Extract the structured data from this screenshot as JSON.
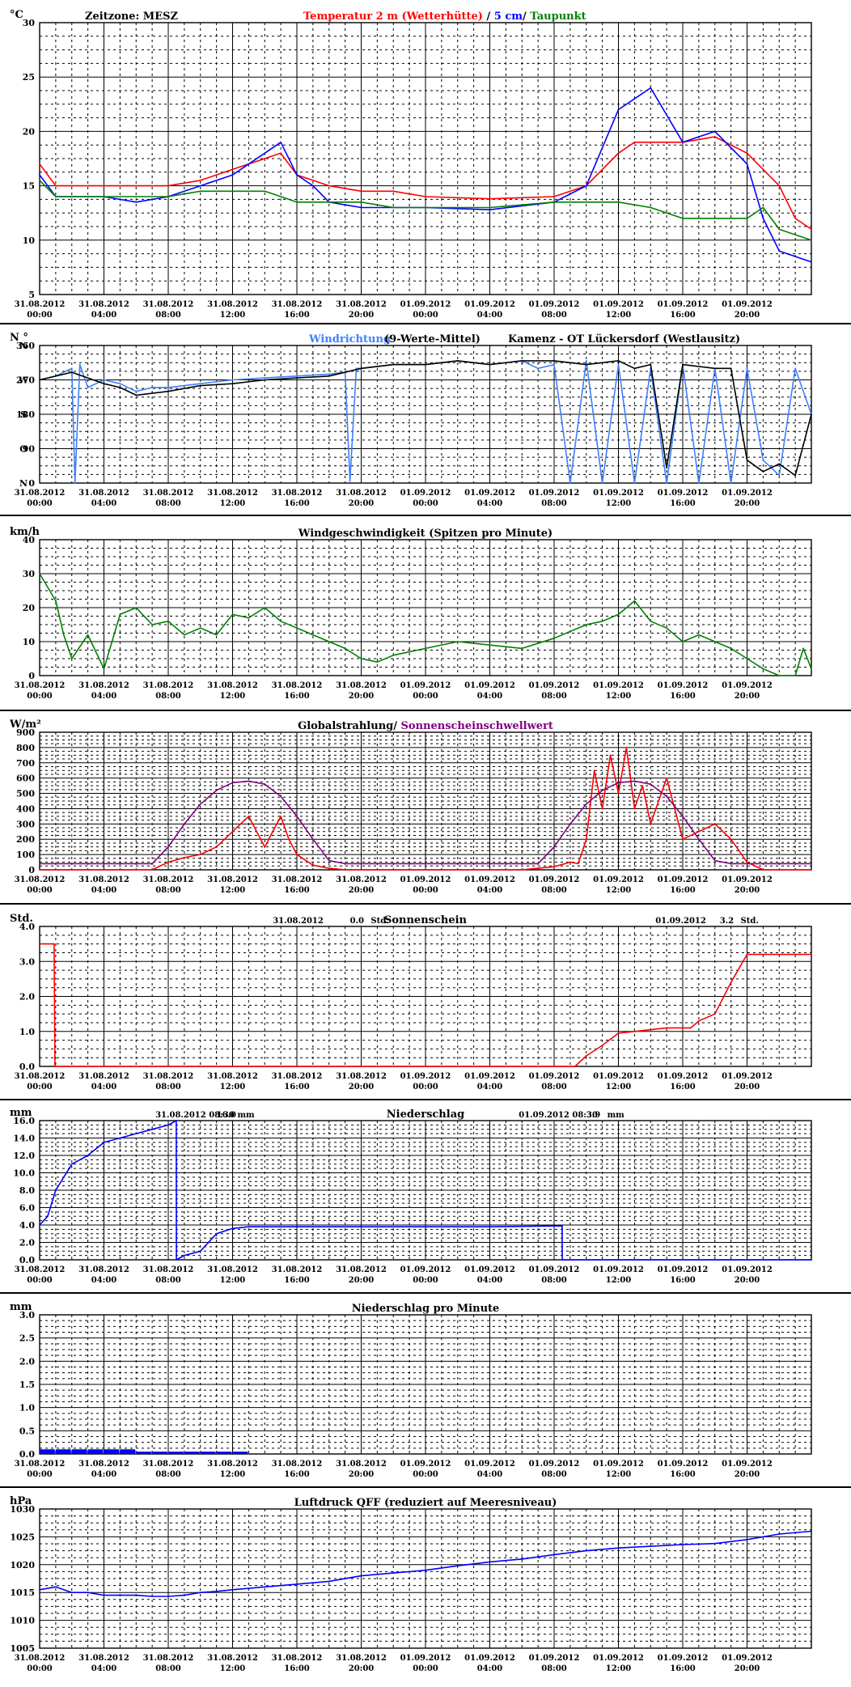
{
  "x_ticks": [
    {
      "date": "31.08.2012",
      "time": "00:00"
    },
    {
      "date": "31.08.2012",
      "time": "04:00"
    },
    {
      "date": "31.08.2012",
      "time": "08:00"
    },
    {
      "date": "31.08.2012",
      "time": "12:00"
    },
    {
      "date": "31.08.2012",
      "time": "16:00"
    },
    {
      "date": "31.08.2012",
      "time": "20:00"
    },
    {
      "date": "01.09.2012",
      "time": "00:00"
    },
    {
      "date": "01.09.2012",
      "time": "04:00"
    },
    {
      "date": "01.09.2012",
      "time": "08:00"
    },
    {
      "date": "01.09.2012",
      "time": "12:00"
    },
    {
      "date": "01.09.2012",
      "time": "16:00"
    },
    {
      "date": "01.09.2012",
      "time": "20:00"
    }
  ],
  "colors": {
    "red": "#ff0000",
    "blue": "#0000ff",
    "green": "#008000",
    "purple": "#800080",
    "lightblue": "#3f7fff",
    "black": "#000000"
  },
  "chart_data": [
    {
      "id": "temperature",
      "type": "line",
      "unit": "°C",
      "ylim": [
        5,
        30
      ],
      "ytick_labels": [
        "5",
        "10",
        "15",
        "20",
        "25",
        "30"
      ],
      "timezone": "Zeitzone: MESZ",
      "title_parts": [
        "Temperatur 2 m (Wetterhütte)",
        "  /  ",
        "5 cm",
        "/ ",
        "Taupunkt"
      ],
      "series": [
        {
          "name": "Temperatur 2 m (Wetterhütte)",
          "color": "red",
          "x": [
            0,
            1,
            2,
            4,
            6,
            8,
            10,
            12,
            14,
            15,
            16,
            17,
            18,
            20,
            22,
            24,
            28,
            32,
            34,
            36,
            37,
            38,
            40,
            42,
            44,
            46,
            47,
            48
          ],
          "y": [
            17,
            15,
            15,
            15,
            15,
            15,
            15.5,
            16.5,
            17.5,
            18,
            16,
            15.5,
            15,
            14.5,
            14.5,
            14,
            13.8,
            14,
            15,
            18,
            19,
            19,
            19,
            19.5,
            18,
            15,
            12,
            11
          ]
        },
        {
          "name": "5 cm",
          "color": "blue",
          "x": [
            0,
            1,
            2,
            4,
            6,
            8,
            10,
            12,
            14,
            15,
            16,
            17,
            18,
            20,
            22,
            24,
            28,
            32,
            34,
            36,
            37,
            38,
            40,
            42,
            44,
            45,
            46,
            47,
            48
          ],
          "y": [
            16,
            14,
            14,
            14,
            13.5,
            14,
            15,
            16,
            18,
            19,
            16,
            15,
            13.5,
            13,
            13,
            13,
            12.8,
            13.5,
            15,
            22,
            23,
            24,
            19,
            20,
            17,
            12,
            9,
            8.5,
            8
          ]
        },
        {
          "name": "Taupunkt",
          "color": "green",
          "x": [
            0,
            1,
            2,
            4,
            6,
            8,
            10,
            12,
            14,
            16,
            18,
            20,
            22,
            24,
            28,
            32,
            34,
            36,
            38,
            40,
            42,
            44,
            45,
            46,
            47,
            48
          ],
          "y": [
            15.5,
            14,
            14,
            14,
            14,
            14,
            14.5,
            14.5,
            14.5,
            13.5,
            13.5,
            13.5,
            13,
            13,
            13,
            13.5,
            13.5,
            13.5,
            13,
            12,
            12,
            12,
            13,
            11,
            10.5,
            10
          ]
        }
      ]
    },
    {
      "id": "winddirection",
      "type": "line",
      "unit": "N °",
      "ylim": [
        0,
        360
      ],
      "ytick_labels": [
        "0",
        "90",
        "180",
        "270",
        "360"
      ],
      "side_labels": [
        "N",
        "O",
        "S",
        "W",
        "N"
      ],
      "title_parts": [
        "Windrichtung",
        "(9-Werte-Mittel)",
        "Kamenz - OT Lückersdorf (Westlausitz)"
      ],
      "series": [
        {
          "name": "Windrichtung",
          "color": "lightblue",
          "x": [
            0,
            1,
            2,
            2.2,
            2.5,
            3,
            4,
            5,
            6,
            7,
            8,
            10,
            12,
            14,
            16,
            18,
            19,
            19.3,
            19.7,
            20,
            22,
            24,
            26,
            28,
            30,
            31,
            32,
            33,
            34,
            35,
            36,
            37,
            38,
            39,
            40,
            41,
            42,
            43,
            44,
            45,
            46,
            47,
            48
          ],
          "y": [
            270,
            280,
            300,
            0,
            310,
            250,
            270,
            260,
            240,
            250,
            250,
            260,
            270,
            275,
            280,
            285,
            290,
            5,
            300,
            300,
            310,
            310,
            320,
            310,
            320,
            300,
            310,
            0,
            320,
            0,
            310,
            0,
            300,
            0,
            310,
            0,
            300,
            0,
            300,
            60,
            20,
            300,
            180
          ]
        },
        {
          "name": "",
          "color": "black",
          "x": [
            0,
            2,
            4,
            5,
            6,
            8,
            10,
            12,
            14,
            16,
            18,
            20,
            22,
            24,
            26,
            28,
            30,
            32,
            34,
            36,
            37,
            38,
            39,
            40,
            42,
            43,
            44,
            45,
            46,
            47,
            47.5,
            48
          ],
          "y": [
            270,
            290,
            260,
            250,
            230,
            240,
            255,
            260,
            270,
            275,
            280,
            300,
            310,
            310,
            320,
            310,
            320,
            320,
            310,
            320,
            300,
            310,
            40,
            310,
            300,
            300,
            60,
            30,
            50,
            20,
            100,
            180
          ]
        }
      ]
    },
    {
      "id": "windspeed",
      "type": "line",
      "unit": "km/h",
      "ylim": [
        0,
        40
      ],
      "ytick_labels": [
        "0",
        "10",
        "20",
        "30",
        "40"
      ],
      "title": "Windgeschwindigkeit (Spitzen pro Minute)",
      "series": [
        {
          "name": "Windgeschwindigkeit (Spitzen pro Minute)",
          "color": "green",
          "x": [
            0,
            1,
            1.5,
            2,
            3,
            4,
            5,
            6,
            7,
            8,
            9,
            10,
            11,
            12,
            13,
            14,
            15,
            16,
            17,
            18,
            19,
            20,
            21,
            22,
            24,
            26,
            28,
            30,
            32,
            34,
            35,
            36,
            37,
            38,
            39,
            40,
            41,
            42,
            43,
            44,
            45,
            46,
            47,
            47.5,
            48
          ],
          "y": [
            30,
            22,
            12,
            5,
            12,
            2,
            18,
            20,
            15,
            16,
            12,
            14,
            12,
            18,
            17,
            20,
            16,
            14,
            12,
            10,
            8,
            5,
            4,
            6,
            8,
            10,
            9,
            8,
            11,
            15,
            16,
            18,
            22,
            16,
            14,
            10,
            12,
            10,
            8,
            5,
            2,
            0,
            0,
            8,
            2
          ]
        }
      ]
    },
    {
      "id": "radiation",
      "type": "line",
      "unit": "W/m²",
      "ylim": [
        0,
        900
      ],
      "ytick_labels": [
        "0",
        "100",
        "200",
        "300",
        "400",
        "500",
        "600",
        "700",
        "800",
        "900"
      ],
      "title_parts": [
        "Globalstrahlung/ ",
        "Sonnenscheinschwellwert"
      ],
      "series": [
        {
          "name": "Globalstrahlung",
          "color": "red",
          "x": [
            0,
            7,
            8,
            9,
            10,
            11,
            12,
            13,
            13.5,
            14,
            14.5,
            15,
            15.5,
            16,
            17,
            18,
            19,
            30,
            31,
            32,
            33,
            33.5,
            34,
            34.5,
            35,
            35.5,
            36,
            36.5,
            37,
            37.5,
            38,
            39,
            40,
            41,
            42,
            43,
            44,
            45,
            48
          ],
          "y": [
            0,
            0,
            50,
            80,
            100,
            150,
            250,
            350,
            250,
            150,
            250,
            350,
            200,
            100,
            30,
            10,
            0,
            0,
            10,
            20,
            50,
            40,
            200,
            650,
            400,
            750,
            500,
            800,
            400,
            550,
            300,
            600,
            200,
            250,
            300,
            200,
            50,
            0,
            0
          ]
        },
        {
          "name": "Sonnenscheinschwellwert",
          "color": "purple",
          "x": [
            0,
            7,
            8,
            9,
            10,
            11,
            12,
            13,
            14,
            15,
            16,
            17,
            18,
            19,
            30,
            31,
            32,
            33,
            34,
            35,
            36,
            37,
            38,
            39,
            40,
            41,
            42,
            43,
            44,
            48
          ],
          "y": [
            40,
            40,
            150,
            300,
            430,
            520,
            570,
            580,
            560,
            480,
            350,
            200,
            60,
            40,
            40,
            40,
            150,
            300,
            430,
            520,
            570,
            580,
            560,
            480,
            350,
            200,
            60,
            40,
            40,
            40
          ]
        }
      ]
    },
    {
      "id": "sunshine",
      "type": "line",
      "unit": "Std.",
      "ylim": [
        0,
        4
      ],
      "ytick_labels": [
        "0.0",
        "1.0",
        "2.0",
        "3.0",
        "4.0"
      ],
      "title": "Sonnenschein",
      "annotations": [
        {
          "text": "31.08.2012",
          "at": 14.5
        },
        {
          "text": "0.0",
          "at": 19.3
        },
        {
          "text": "Std.",
          "at": 20.6
        },
        {
          "text": "01.09.2012",
          "at": 38.3
        },
        {
          "text": "3.2",
          "at": 42.3
        },
        {
          "text": "Std.",
          "at": 43.6
        }
      ],
      "series": [
        {
          "name": "Sonnenschein",
          "color": "red",
          "x": [
            0,
            0.9,
            0.95,
            33.3,
            34,
            35,
            36,
            37,
            38,
            39,
            40,
            40.5,
            41,
            42,
            43,
            44,
            45,
            48
          ],
          "y": [
            3.5,
            3.5,
            0,
            0,
            0.3,
            0.6,
            0.95,
            1,
            1.05,
            1.1,
            1.1,
            1.1,
            1.3,
            1.5,
            2.4,
            3.2,
            3.2,
            3.2
          ]
        }
      ]
    },
    {
      "id": "precipitation",
      "type": "line",
      "unit": "mm",
      "ylim": [
        0,
        16
      ],
      "ytick_labels": [
        "0.0",
        "2.0",
        "4.0",
        "6.0",
        "8.0",
        "10.0",
        "12.0",
        "14.0",
        "16.0"
      ],
      "title": "Niederschlag",
      "annotations": [
        {
          "text": "31.08.2012 08:30",
          "at": 7.2
        },
        {
          "text": "16.0",
          "at": 11.0
        },
        {
          "text": "mm",
          "at": 12.3
        },
        {
          "text": "01.09.2012 08:30",
          "at": 29.8
        },
        {
          "text": "3.9",
          "at": 34.0
        },
        {
          "text": "mm",
          "at": 35.3
        }
      ],
      "series": [
        {
          "name": "Niederschlag",
          "color": "blue",
          "x": [
            0,
            0.5,
            1,
            2,
            3,
            4,
            5,
            6,
            7,
            8,
            8.5,
            8.51,
            9,
            10,
            10.5,
            11,
            12,
            13,
            14,
            20,
            24,
            28,
            32.5,
            32.51,
            48
          ],
          "y": [
            4,
            5,
            8,
            11,
            12,
            13.5,
            14,
            14.5,
            15,
            15.5,
            16,
            0,
            0.5,
            1,
            2,
            3,
            3.6,
            3.8,
            3.8,
            3.8,
            3.8,
            3.8,
            3.9,
            0,
            0
          ]
        }
      ]
    },
    {
      "id": "precip_per_minute",
      "type": "bar",
      "unit": "mm",
      "ylim": [
        0,
        3
      ],
      "ytick_labels": [
        "0.0",
        "0.5",
        "1.0",
        "1.5",
        "2.0",
        "2.5",
        "3.0"
      ],
      "title": "Niederschlag pro Minute",
      "series": [
        {
          "name": "Niederschlag pro Minute",
          "color": "blue",
          "x": [
            0,
            1,
            2,
            3,
            4,
            5,
            6,
            7,
            8,
            9,
            10,
            11,
            12
          ],
          "y": [
            0.1,
            0.1,
            0.1,
            0.1,
            0.1,
            0.1,
            0.05,
            0.05,
            0.05,
            0.05,
            0.05,
            0.05,
            0.05
          ]
        }
      ]
    },
    {
      "id": "pressure",
      "type": "line",
      "unit": "hPa",
      "ylim": [
        1005,
        1030
      ],
      "ytick_labels": [
        "1005",
        "1010",
        "1015",
        "1020",
        "1025",
        "1030"
      ],
      "title": "Luftdruck QFF (reduziert auf Meeresniveau)",
      "series": [
        {
          "name": "Luftdruck QFF",
          "color": "blue",
          "x": [
            0,
            1,
            2,
            3,
            4,
            5,
            6,
            7,
            8,
            9,
            10,
            11,
            12,
            14,
            16,
            18,
            20,
            22,
            24,
            26,
            28,
            30,
            32,
            34,
            36,
            38,
            40,
            42,
            44,
            46,
            48
          ],
          "y": [
            1015.5,
            1016,
            1015,
            1015,
            1014.5,
            1014.5,
            1014.5,
            1014.3,
            1014.3,
            1014.5,
            1015,
            1015.2,
            1015.5,
            1016,
            1016.5,
            1017,
            1018,
            1018.5,
            1019,
            1019.8,
            1020.5,
            1021,
            1021.8,
            1022.5,
            1023,
            1023.3,
            1023.6,
            1023.8,
            1024.5,
            1025.5,
            1026
          ]
        }
      ]
    }
  ]
}
